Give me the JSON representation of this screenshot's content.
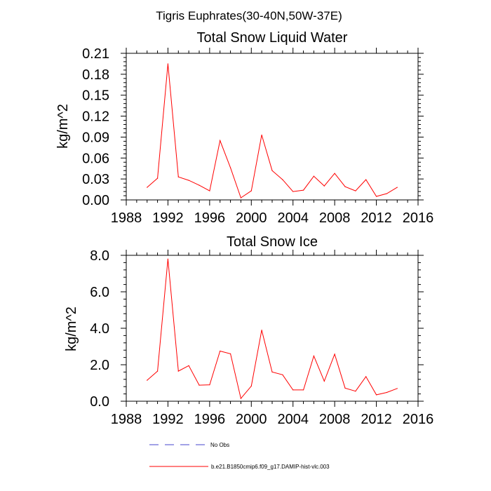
{
  "suptitle": "Tigris Euphrates(30-40N,50W-37E)",
  "colors": {
    "model": "#ff0000",
    "obs": "#4444cc",
    "axis": "#000000"
  },
  "chart_data": [
    {
      "type": "line",
      "title": "Total Snow Liquid Water",
      "xlabel": "",
      "ylabel": "kg/m^2",
      "xlim": [
        1988,
        2016
      ],
      "ylim": [
        0,
        0.21
      ],
      "xticks": [
        1988,
        1992,
        1996,
        2000,
        2004,
        2008,
        2012,
        2016
      ],
      "xtick_labels": [
        "1988",
        "1992",
        "1996",
        "2000",
        "2004",
        "2008",
        "2012",
        "2016"
      ],
      "yticks": [
        0,
        0.03,
        0.06,
        0.09,
        0.12,
        0.15,
        0.18,
        0.21
      ],
      "ytick_labels": [
        "0.00",
        "0.03",
        "0.06",
        "0.09",
        "0.12",
        "0.15",
        "0.18",
        "0.21"
      ],
      "series": [
        {
          "name": "b.e21.B1850cmip6.f09_g17.DAMIP-hist-vlc.003",
          "x": [
            1990,
            1991,
            1992,
            1993,
            1994,
            1995,
            1996,
            1997,
            1998,
            1999,
            2000,
            2001,
            2002,
            2003,
            2004,
            2005,
            2006,
            2007,
            2008,
            2009,
            2010,
            2011,
            2012,
            2013,
            2014
          ],
          "values": [
            0.018,
            0.031,
            0.195,
            0.033,
            0.028,
            0.021,
            0.013,
            0.085,
            0.046,
            0.003,
            0.013,
            0.093,
            0.042,
            0.029,
            0.012,
            0.014,
            0.034,
            0.02,
            0.038,
            0.019,
            0.013,
            0.029,
            0.005,
            0.009,
            0.018
          ]
        }
      ]
    },
    {
      "type": "line",
      "title": "Total Snow Ice",
      "xlabel": "",
      "ylabel": "kg/m^2",
      "xlim": [
        1988,
        2016
      ],
      "ylim": [
        0,
        8
      ],
      "xticks": [
        1988,
        1992,
        1996,
        2000,
        2004,
        2008,
        2012,
        2016
      ],
      "xtick_labels": [
        "1988",
        "1992",
        "1996",
        "2000",
        "2004",
        "2008",
        "2012",
        "2016"
      ],
      "yticks": [
        0,
        2,
        4,
        6,
        8
      ],
      "ytick_labels": [
        "0.0",
        "2.0",
        "4.0",
        "6.0",
        "8.0"
      ],
      "series": [
        {
          "name": "b.e21.B1850cmip6.f09_g17.DAMIP-hist-vlc.003",
          "x": [
            1990,
            1991,
            1992,
            1993,
            1994,
            1995,
            1996,
            1997,
            1998,
            1999,
            2000,
            2001,
            2002,
            2003,
            2004,
            2005,
            2006,
            2007,
            2008,
            2009,
            2010,
            2011,
            2012,
            2013,
            2014
          ],
          "values": [
            1.15,
            1.65,
            7.8,
            1.65,
            1.95,
            0.88,
            0.9,
            2.75,
            2.6,
            0.15,
            0.83,
            3.9,
            1.6,
            1.45,
            0.62,
            0.62,
            2.48,
            1.1,
            2.58,
            0.72,
            0.55,
            1.35,
            0.35,
            0.48,
            0.7
          ]
        }
      ]
    }
  ],
  "legend": [
    {
      "label": "No Obs",
      "style": "dashed",
      "color": "#4444cc"
    },
    {
      "label": "b.e21.B1850cmip6.f09_g17.DAMIP-hist-vlc.003",
      "style": "solid",
      "color": "#ff0000"
    }
  ]
}
